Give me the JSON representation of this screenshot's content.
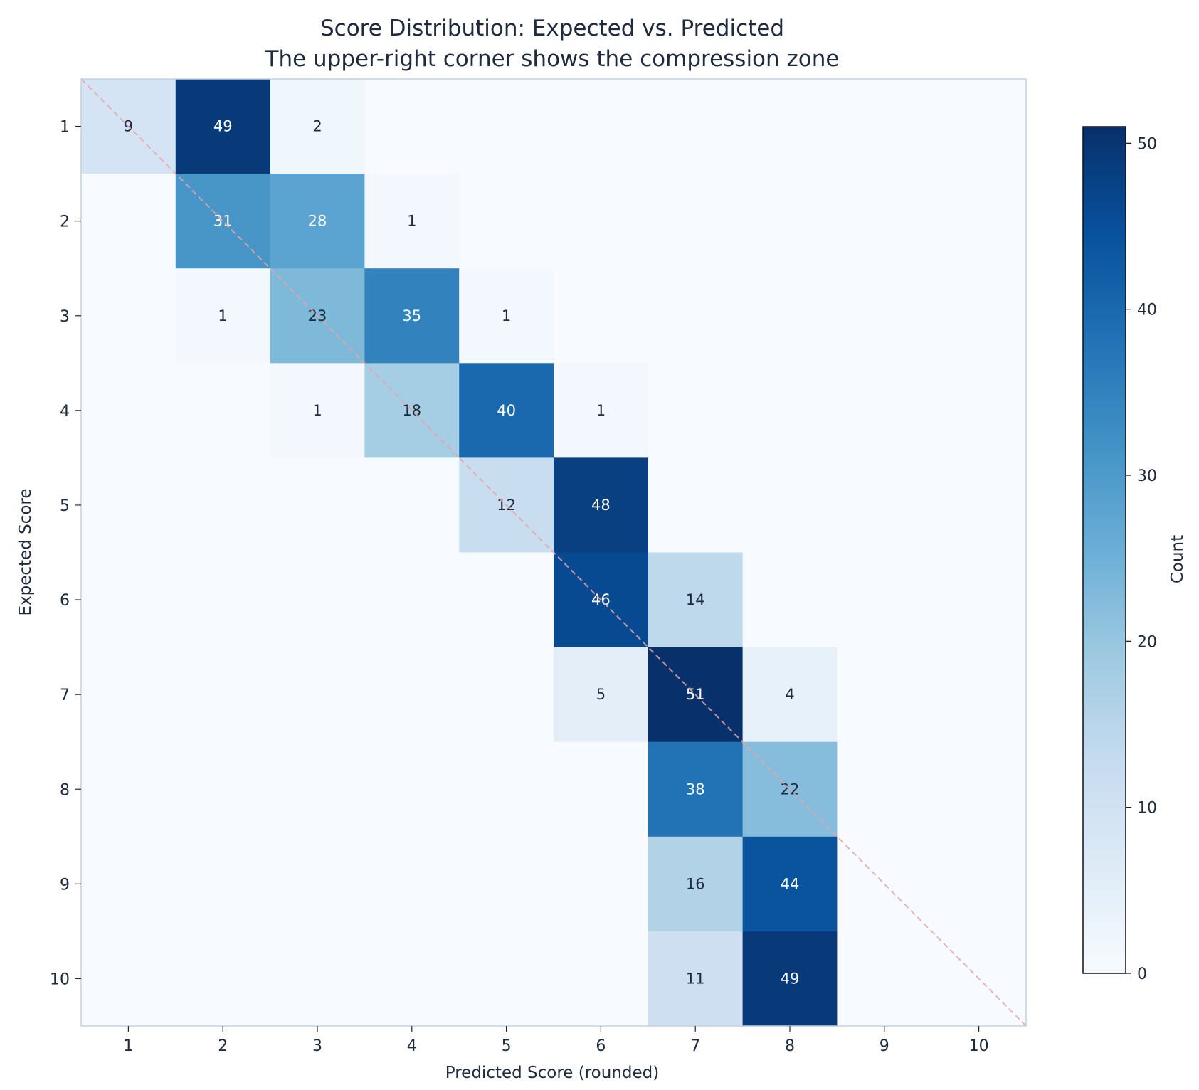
{
  "chart_data": {
    "type": "heatmap",
    "title": "Score Distribution: Expected vs. Predicted",
    "subtitle": "The upper-right corner shows the compression zone",
    "xlabel": "Predicted Score (rounded)",
    "ylabel": "Expected Score",
    "x_categories": [
      "1",
      "2",
      "3",
      "4",
      "5",
      "6",
      "7",
      "8",
      "9",
      "10"
    ],
    "y_categories": [
      "1",
      "2",
      "3",
      "4",
      "5",
      "6",
      "7",
      "8",
      "9",
      "10"
    ],
    "values": [
      [
        9,
        49,
        2,
        0,
        0,
        0,
        0,
        0,
        0,
        0
      ],
      [
        0,
        31,
        28,
        1,
        0,
        0,
        0,
        0,
        0,
        0
      ],
      [
        0,
        1,
        23,
        35,
        1,
        0,
        0,
        0,
        0,
        0
      ],
      [
        0,
        0,
        1,
        18,
        40,
        1,
        0,
        0,
        0,
        0
      ],
      [
        0,
        0,
        0,
        0,
        12,
        48,
        0,
        0,
        0,
        0
      ],
      [
        0,
        0,
        0,
        0,
        0,
        46,
        14,
        0,
        0,
        0
      ],
      [
        0,
        0,
        0,
        0,
        0,
        5,
        51,
        4,
        0,
        0
      ],
      [
        0,
        0,
        0,
        0,
        0,
        0,
        38,
        22,
        0,
        0
      ],
      [
        0,
        0,
        0,
        0,
        0,
        0,
        16,
        44,
        0,
        0
      ],
      [
        0,
        0,
        0,
        0,
        0,
        0,
        11,
        49,
        0,
        0
      ]
    ],
    "colormap": "Blues",
    "color_range": [
      0,
      51
    ],
    "colorbar": {
      "label": "Count",
      "ticks": [
        0,
        10,
        20,
        30,
        40,
        50
      ]
    },
    "diagonal_reference_line": {
      "style": "dashed",
      "color": "#e8a5a5"
    },
    "grid": false
  }
}
